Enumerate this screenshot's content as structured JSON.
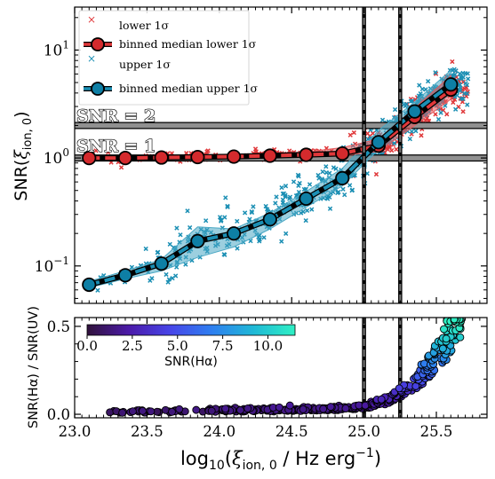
{
  "chart_data": [
    {
      "panel": "top",
      "type": "scatter",
      "ylabel": "SNR(ξ_ion,0)",
      "ylabel_main": "SNR(",
      "ylabel_sym": "ξ",
      "ylabel_sub": "ion, 0",
      "ylabel_close": ")",
      "yscale": "log",
      "xlim": [
        23.0,
        25.85
      ],
      "ylim": [
        0.045,
        25
      ],
      "yticks": [
        {
          "value": 0.1,
          "base": "10",
          "exp": "−1"
        },
        {
          "value": 1,
          "base": "10",
          "exp": "0"
        },
        {
          "value": 10,
          "base": "10",
          "exp": "1"
        }
      ],
      "hlines": [
        {
          "y": 1.0,
          "label": "SNR = 1"
        },
        {
          "y": 2.0,
          "label": "SNR = 2"
        }
      ],
      "vlines": [
        25.0,
        25.25
      ],
      "legend_position": "upper-left",
      "legend": [
        {
          "key": "lower_scatter",
          "label": "lower 1σ"
        },
        {
          "key": "lower_median",
          "label": "binned median lower 1σ"
        },
        {
          "key": "upper_scatter",
          "label": "upper 1σ"
        },
        {
          "key": "upper_median",
          "label": "binned median upper 1σ"
        }
      ],
      "colors": {
        "lower": "#e0383a",
        "lower_dark": "#d42a2d",
        "upper": "#1b8fb4",
        "upper_dark": "#0e7fa5",
        "band_lower": "#e35b5d",
        "band_upper": "#4aa8c4"
      },
      "series": [
        {
          "key": "lower_median",
          "x": [
            23.1,
            23.35,
            23.6,
            23.85,
            24.1,
            24.35,
            24.6,
            24.85,
            25.1,
            25.35,
            25.6
          ],
          "y": [
            1.0,
            1.0,
            1.01,
            1.02,
            1.03,
            1.05,
            1.07,
            1.1,
            1.3,
            2.4,
            4.3
          ],
          "band_lo": [
            0.97,
            0.97,
            0.98,
            0.99,
            1.0,
            1.01,
            1.02,
            1.05,
            1.15,
            2.0,
            3.5
          ],
          "band_hi": [
            1.04,
            1.04,
            1.05,
            1.07,
            1.08,
            1.1,
            1.14,
            1.25,
            1.5,
            2.9,
            5.8
          ]
        },
        {
          "key": "upper_median",
          "x": [
            23.1,
            23.35,
            23.6,
            23.85,
            24.1,
            24.35,
            24.6,
            24.85,
            25.1,
            25.35,
            25.6
          ],
          "y": [
            0.067,
            0.082,
            0.105,
            0.17,
            0.2,
            0.27,
            0.42,
            0.65,
            1.4,
            2.7,
            4.8
          ],
          "band_lo": [
            0.063,
            0.076,
            0.09,
            0.12,
            0.15,
            0.22,
            0.35,
            0.55,
            1.2,
            2.3,
            3.9
          ],
          "band_hi": [
            0.072,
            0.09,
            0.115,
            0.23,
            0.22,
            0.31,
            0.49,
            0.8,
            1.8,
            3.3,
            6.5
          ]
        }
      ]
    },
    {
      "panel": "bottom",
      "type": "scatter",
      "ylabel": "SNR(Hα) / SNR(UV)",
      "xlabel": "log10(ξ_ion,0 / Hz erg^-1)",
      "xlabel_main": "log",
      "xlabel_base": "10",
      "xlabel_sym": "ξ",
      "xlabel_sub": "ion, 0",
      "xlabel_units": " / Hz erg",
      "xlabel_exp": "−1",
      "xlim": [
        23.0,
        25.85
      ],
      "ylim": [
        -0.02,
        0.55
      ],
      "xticks": [
        {
          "value": 23.0,
          "label": "23.0"
        },
        {
          "value": 23.5,
          "label": "23.5"
        },
        {
          "value": 24.0,
          "label": "24.0"
        },
        {
          "value": 24.5,
          "label": "24.5"
        },
        {
          "value": 25.0,
          "label": "25.0"
        },
        {
          "value": 25.5,
          "label": "25.5"
        }
      ],
      "yticks": [
        {
          "value": 0.0,
          "label": "0.0"
        },
        {
          "value": 0.5,
          "label": "0.5"
        }
      ],
      "vlines": [
        25.0,
        25.25
      ],
      "colorbar": {
        "label": "SNR(Hα)",
        "range": [
          0,
          11.5
        ],
        "ticks": [
          {
            "value": 0.0,
            "label": "0.0"
          },
          {
            "value": 2.5,
            "label": "2.5"
          },
          {
            "value": 5.0,
            "label": "5.0"
          },
          {
            "value": 7.5,
            "label": "7.5"
          },
          {
            "value": 10.0,
            "label": "10.0"
          }
        ],
        "colormap": "rainbow-purple-to-teal"
      }
    }
  ]
}
